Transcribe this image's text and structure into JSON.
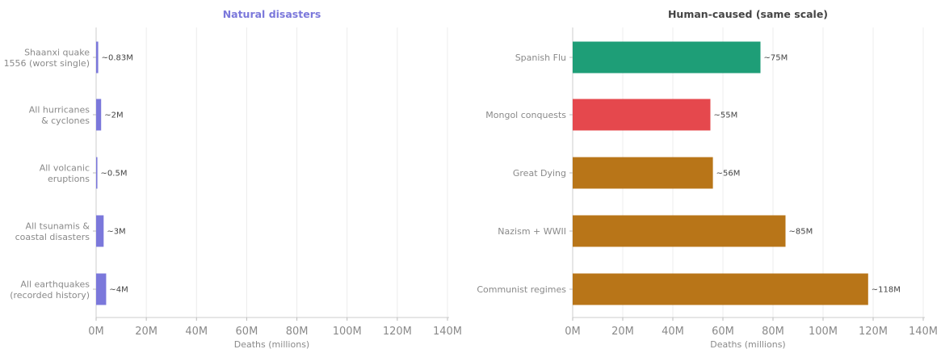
{
  "colors": {
    "natural": "#7b78db",
    "disease": "#1e9e77",
    "conquest": "#e5484d",
    "human": "#b87518",
    "title_natural": "#7b78db",
    "title_human": "#444444"
  },
  "chart_data": [
    {
      "type": "bar",
      "orientation": "horizontal",
      "title": "Natural disasters",
      "xlabel": "Deaths (millions)",
      "ylabel": "",
      "xlim": [
        0,
        140
      ],
      "xticks": [
        "0M",
        "20M",
        "40M",
        "60M",
        "80M",
        "100M",
        "120M",
        "140M"
      ],
      "grid": "vertical",
      "categories": [
        [
          "Shaanxi quake",
          "1556 (worst single)"
        ],
        [
          "All hurricanes",
          "& cyclones"
        ],
        [
          "All volcanic",
          "eruptions"
        ],
        [
          "All tsunamis &",
          "coastal disasters"
        ],
        [
          "All earthquakes",
          "(recorded history)"
        ]
      ],
      "values": [
        0.83,
        2,
        0.5,
        3,
        4
      ],
      "data_labels": [
        "~0.83M",
        "~2M",
        "~0.5M",
        "~3M",
        "~4M"
      ],
      "bar_colors": [
        "natural",
        "natural",
        "natural",
        "natural",
        "natural"
      ]
    },
    {
      "type": "bar",
      "orientation": "horizontal",
      "title": "Human-caused (same scale)",
      "xlabel": "Deaths (millions)",
      "ylabel": "",
      "xlim": [
        0,
        140
      ],
      "xticks": [
        "0M",
        "20M",
        "40M",
        "60M",
        "80M",
        "100M",
        "120M",
        "140M"
      ],
      "grid": "vertical",
      "categories": [
        [
          "Spanish Flu"
        ],
        [
          "Mongol conquests"
        ],
        [
          "Great Dying"
        ],
        [
          "Nazism + WWII"
        ],
        [
          "Communist regimes"
        ]
      ],
      "values": [
        75,
        55,
        56,
        85,
        118
      ],
      "data_labels": [
        "~75M",
        "~55M",
        "~56M",
        "~85M",
        "~118M"
      ],
      "bar_colors": [
        "disease",
        "conquest",
        "human",
        "human",
        "human"
      ]
    }
  ]
}
